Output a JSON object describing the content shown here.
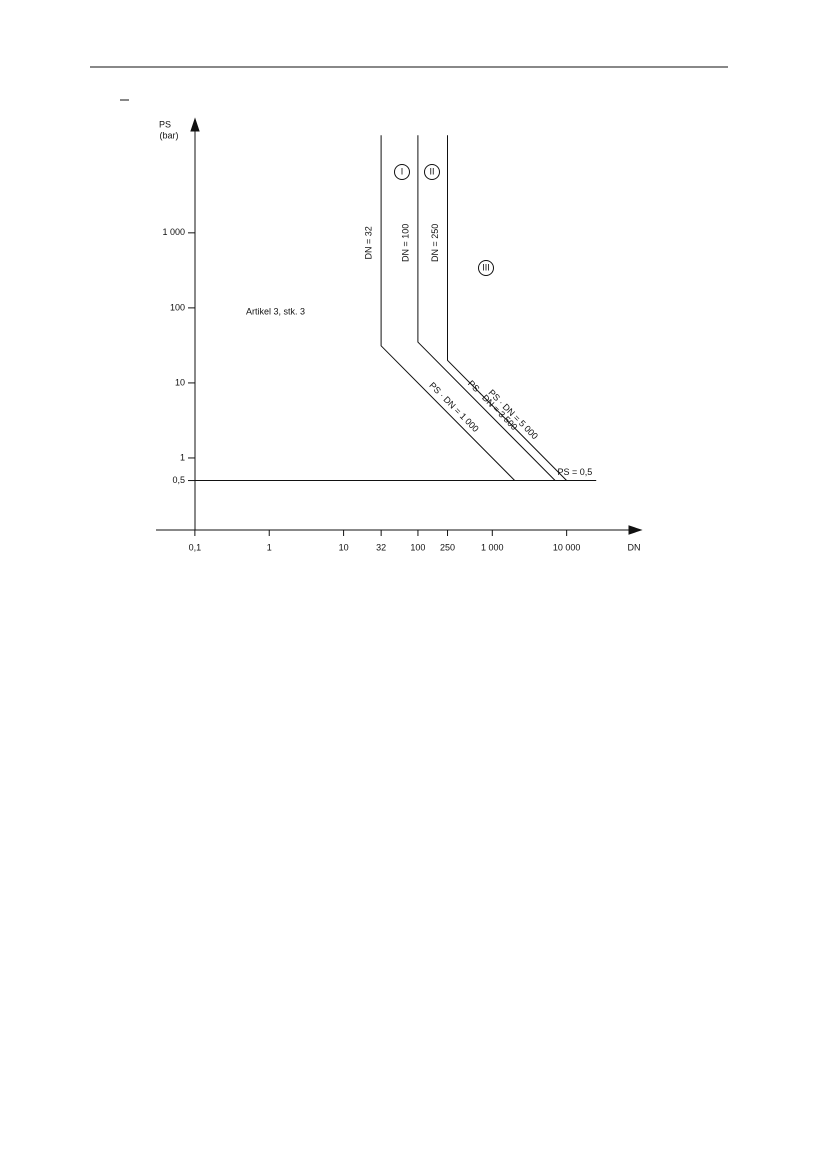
{
  "chart_data": {
    "type": "line",
    "x_label": "DN",
    "y_label": "PS",
    "y_unit": "(bar)",
    "log_x": true,
    "log_y": true,
    "color": "#111111",
    "xlim": [
      0.03,
      100000
    ],
    "ylim": [
      0.1,
      30000
    ],
    "xticks": [
      {
        "value": 0.1,
        "label": "0,1"
      },
      1,
      10,
      32,
      100,
      250,
      {
        "value": 1000,
        "label": "1 000"
      },
      {
        "value": 10000,
        "label": "10 000"
      }
    ],
    "yticks": [
      {
        "value": 0.5,
        "label": "0,5"
      },
      1,
      10,
      100,
      {
        "value": 1000,
        "label": "1 000"
      }
    ],
    "series": [
      {
        "name": "DN = 32",
        "diagonal_label": "PS · DN = 1 000",
        "x": [
          32,
          32,
          2000
        ],
        "values": [
          20000,
          31.25,
          0.5
        ]
      },
      {
        "name": "DN = 100",
        "diagonal_label": "PS · DN = 3 500",
        "x": [
          100,
          100,
          7000
        ],
        "values": [
          20000,
          35,
          0.5
        ]
      },
      {
        "name": "DN = 250",
        "diagonal_label": "PS · DN = 5 000",
        "x": [
          250,
          250,
          10000
        ],
        "values": [
          20000,
          20,
          0.5
        ]
      },
      {
        "name": "PS = 0,5",
        "x": [
          0.1,
          25000
        ],
        "values": [
          0.5,
          0.5
        ]
      }
    ],
    "annotations": [
      "Artikel 3, stk. 3",
      "I",
      "II",
      "III"
    ]
  }
}
